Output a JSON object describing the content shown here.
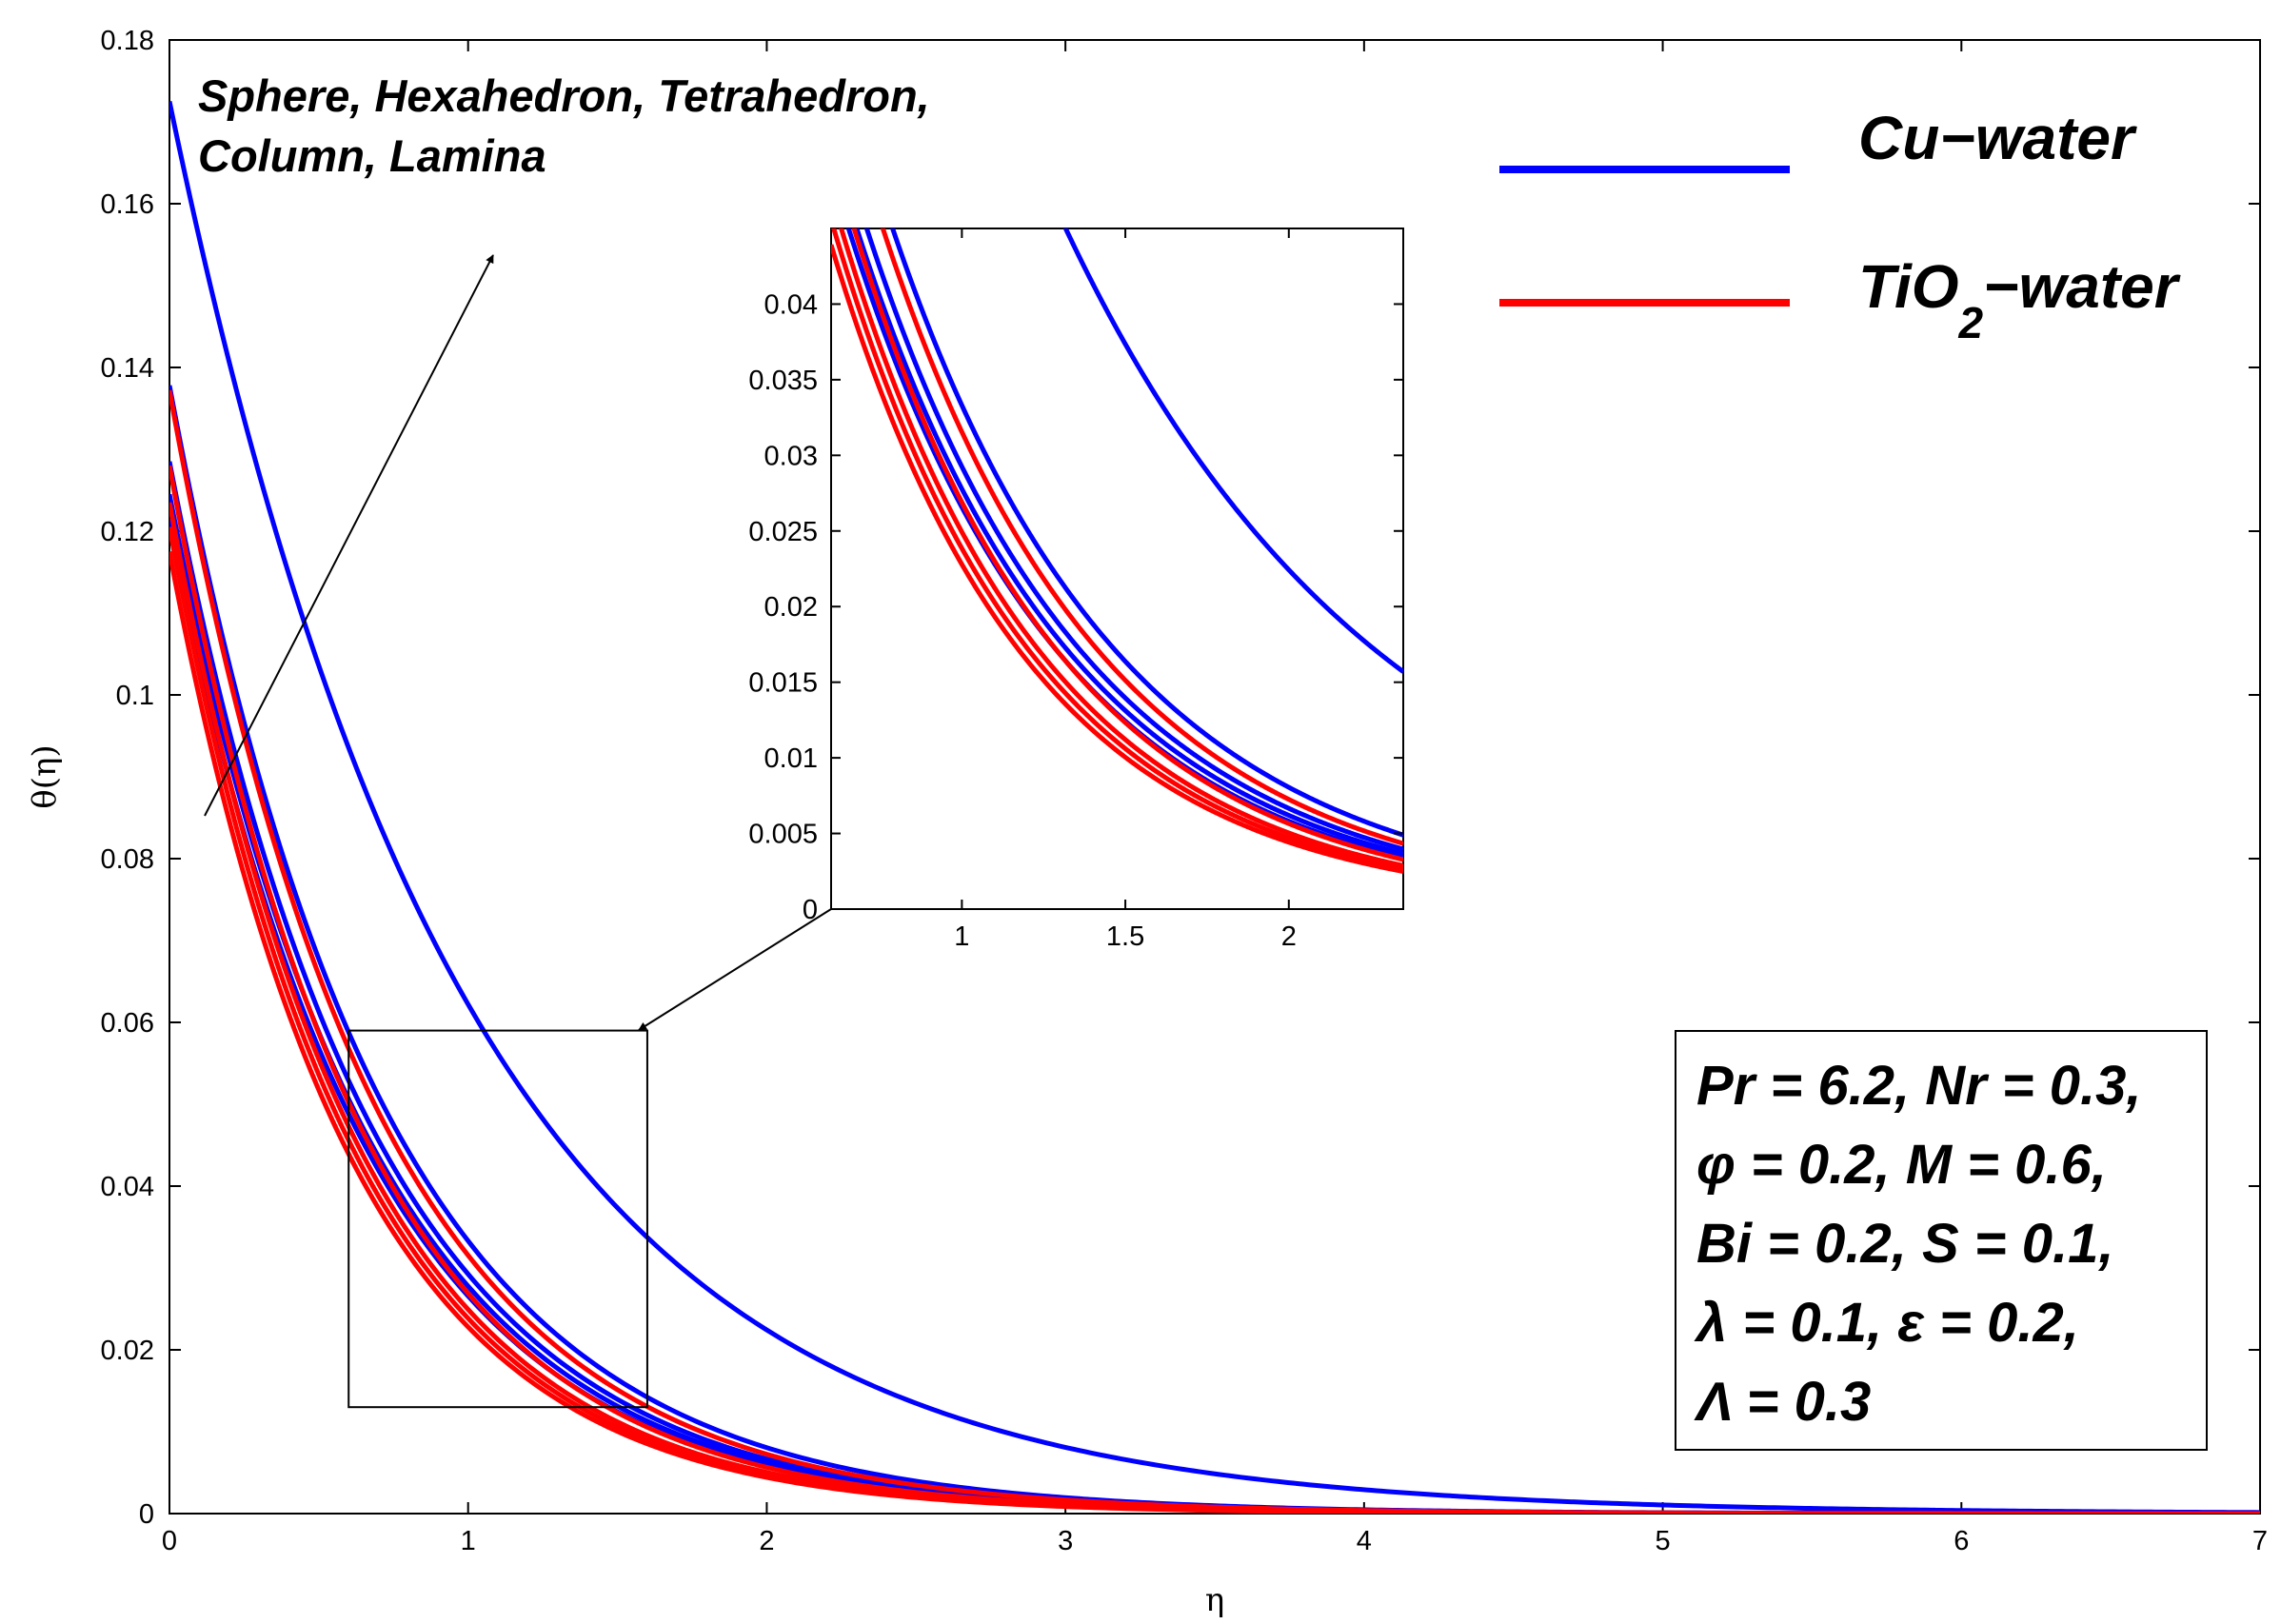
{
  "chart_data": {
    "type": "line",
    "title": "",
    "xlabel": "η",
    "ylabel": "θ(η)",
    "xlim": [
      0,
      7
    ],
    "ylim": [
      0,
      0.18
    ],
    "xticks": [
      "0",
      "1",
      "2",
      "3",
      "4",
      "5",
      "6",
      "7"
    ],
    "yticks": [
      "0",
      "0.02",
      "0.04",
      "0.06",
      "0.08",
      "0.1",
      "0.12",
      "0.14",
      "0.16",
      "0.18"
    ],
    "legend": [
      {
        "name": "Cu−water",
        "color": "#0000ff"
      },
      {
        "name": "TiO",
        "subscript": "2",
        "suffix": "−water",
        "color": "#ff0000"
      }
    ],
    "colors": {
      "cu": "#0000ff",
      "tio2": "#ff0000"
    },
    "series": [
      {
        "name": "Cu−water Lamina",
        "color": "#0000ff",
        "theta0": 0.1725,
        "decay": 1.02
      },
      {
        "name": "Cu−water Column",
        "color": "#0000ff",
        "theta0": 0.1378,
        "decay": 1.42
      },
      {
        "name": "Cu−water Tetrahedron",
        "color": "#0000ff",
        "theta0": 0.1285,
        "decay": 1.48
      },
      {
        "name": "Cu−water Hexahedron",
        "color": "#0000ff",
        "theta0": 0.1245,
        "decay": 1.5
      },
      {
        "name": "Cu−water Sphere",
        "color": "#0000ff",
        "theta0": 0.1215,
        "decay": 1.52
      },
      {
        "name": "TiO2−water Lamina",
        "color": "#ff0000",
        "theta0": 0.1372,
        "decay": 1.47
      },
      {
        "name": "TiO2−water Column",
        "color": "#ff0000",
        "theta0": 0.128,
        "decay": 1.56
      },
      {
        "name": "TiO2−water Tetrahedron",
        "color": "#ff0000",
        "theta0": 0.1235,
        "decay": 1.6
      },
      {
        "name": "TiO2−water Hexahedron",
        "color": "#ff0000",
        "theta0": 0.1205,
        "decay": 1.62
      },
      {
        "name": "TiO2−water Sphere",
        "color": "#ff0000",
        "theta0": 0.1175,
        "decay": 1.64
      }
    ],
    "zoom_box": {
      "xlim": [
        0.6,
        1.6
      ],
      "ylim": [
        0.013,
        0.059
      ]
    },
    "inset": {
      "xlim": [
        0.6,
        2.35
      ],
      "ylim": [
        0,
        0.045
      ],
      "xticks": [
        "1",
        "1.5",
        "2"
      ],
      "yticks": [
        "0",
        "0.005",
        "0.01",
        "0.015",
        "0.02",
        "0.025",
        "0.03",
        "0.035",
        "0.04"
      ]
    },
    "annotation": {
      "lines": [
        "Sphere, Hexahedron, Tetrahedron,",
        "Column, Lamina"
      ]
    },
    "parameters": {
      "lines": [
        "Pr = 6.2, Nr = 0.3,",
        "φ = 0.2, M = 0.6,",
        "Bi = 0.2, S = 0.1,",
        "λ = 0.1, ε = 0.2,",
        "Λ = 0.3"
      ]
    }
  }
}
